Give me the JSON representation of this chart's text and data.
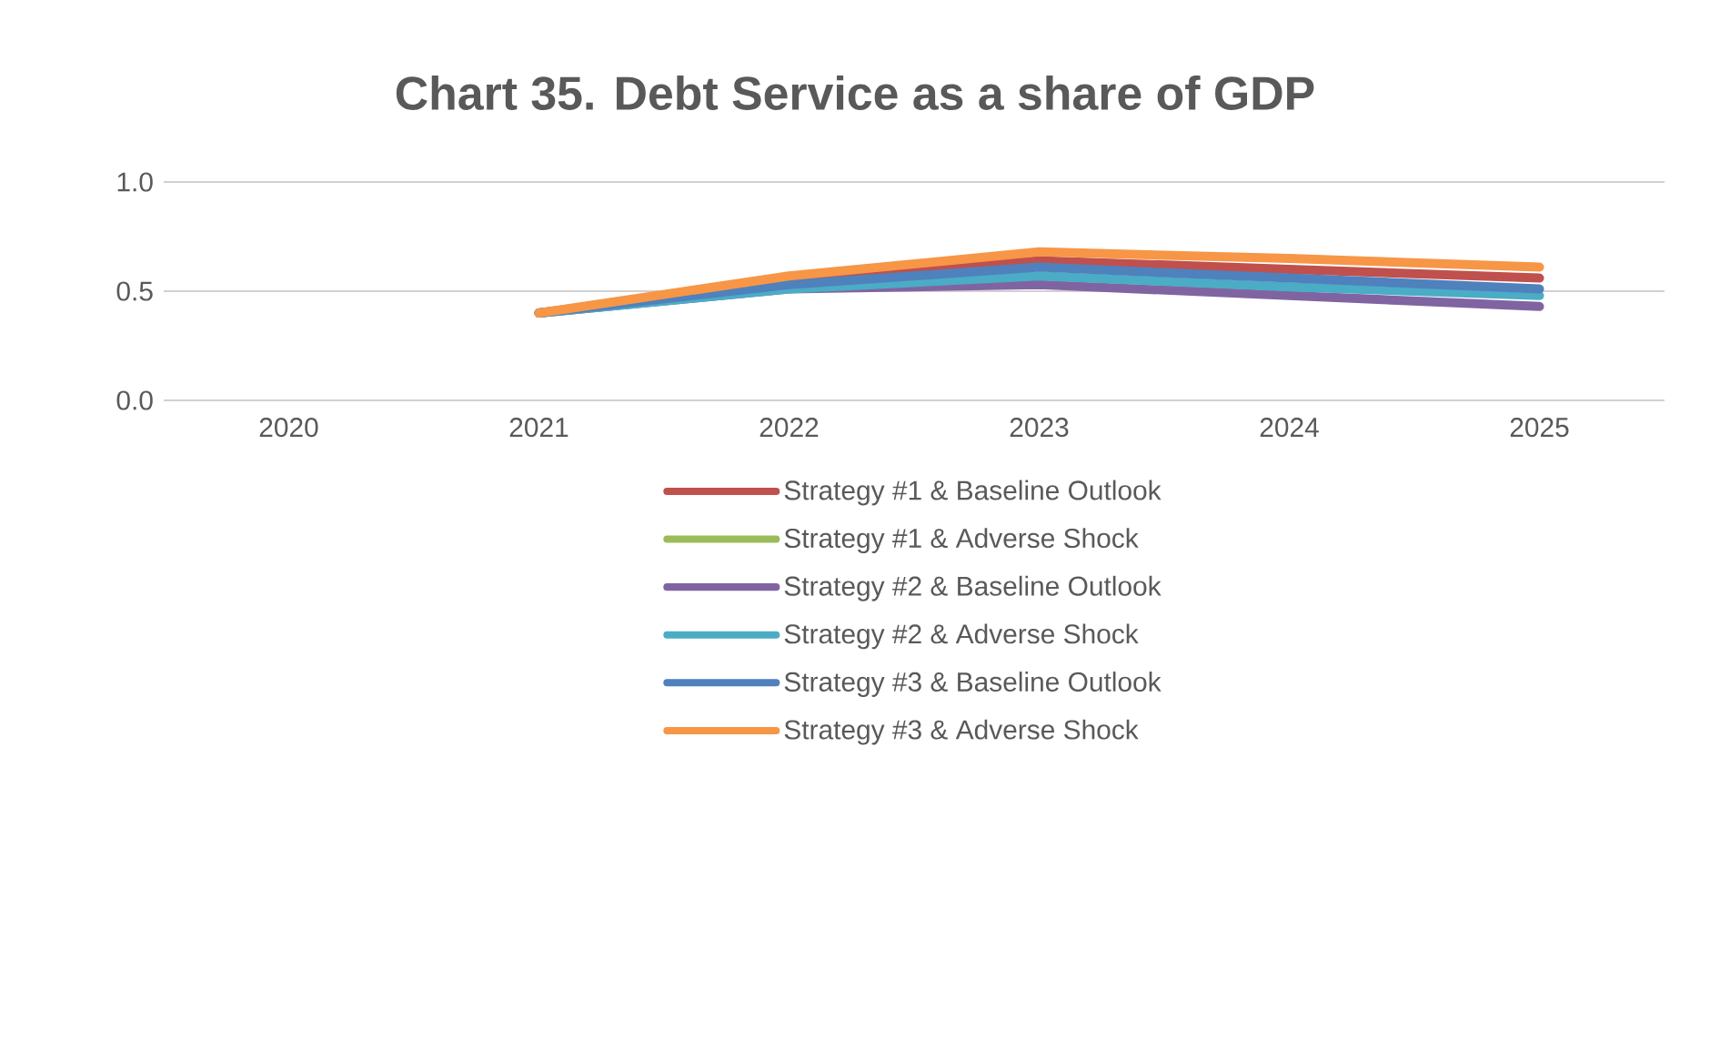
{
  "chart_data": {
    "type": "line",
    "title": "Chart 35. Debt Service as a share of GDP",
    "categories": [
      "2020",
      "2021",
      "2022",
      "2023",
      "2024",
      "2025"
    ],
    "ylim": [
      0,
      1
    ],
    "yticks": [
      {
        "value": 0,
        "label": "0.0"
      },
      {
        "value": 0.5,
        "label": "0.5"
      },
      {
        "value": 1,
        "label": "1.0"
      }
    ],
    "grid": "y",
    "legend": "bottom",
    "line_style": "solid",
    "series": [
      {
        "name": "Strategy #1 & Baseline Outlook",
        "color": "#c0504d",
        "values": [
          null,
          0.4,
          0.55,
          0.64,
          0.6,
          0.56
        ]
      },
      {
        "name": "Strategy #1 & Adverse Shock",
        "color": "#9bbb59",
        "values": [
          null,
          null,
          null,
          null,
          null,
          null
        ]
      },
      {
        "name": "Strategy #2 & Baseline Outlook",
        "color": "#8064a2",
        "values": [
          null,
          0.4,
          0.51,
          0.53,
          0.48,
          0.43
        ]
      },
      {
        "name": "Strategy #2 & Adverse Shock",
        "color": "#4bacc6",
        "values": [
          null,
          0.4,
          0.51,
          0.57,
          0.52,
          0.48
        ]
      },
      {
        "name": "Strategy #3 & Baseline Outlook",
        "color": "#4f81bd",
        "values": [
          null,
          0.4,
          0.53,
          0.61,
          0.56,
          0.51
        ]
      },
      {
        "name": "Strategy #3 & Adverse Shock",
        "color": "#f79646",
        "values": [
          null,
          0.4,
          0.57,
          0.68,
          0.65,
          0.61
        ]
      }
    ]
  }
}
